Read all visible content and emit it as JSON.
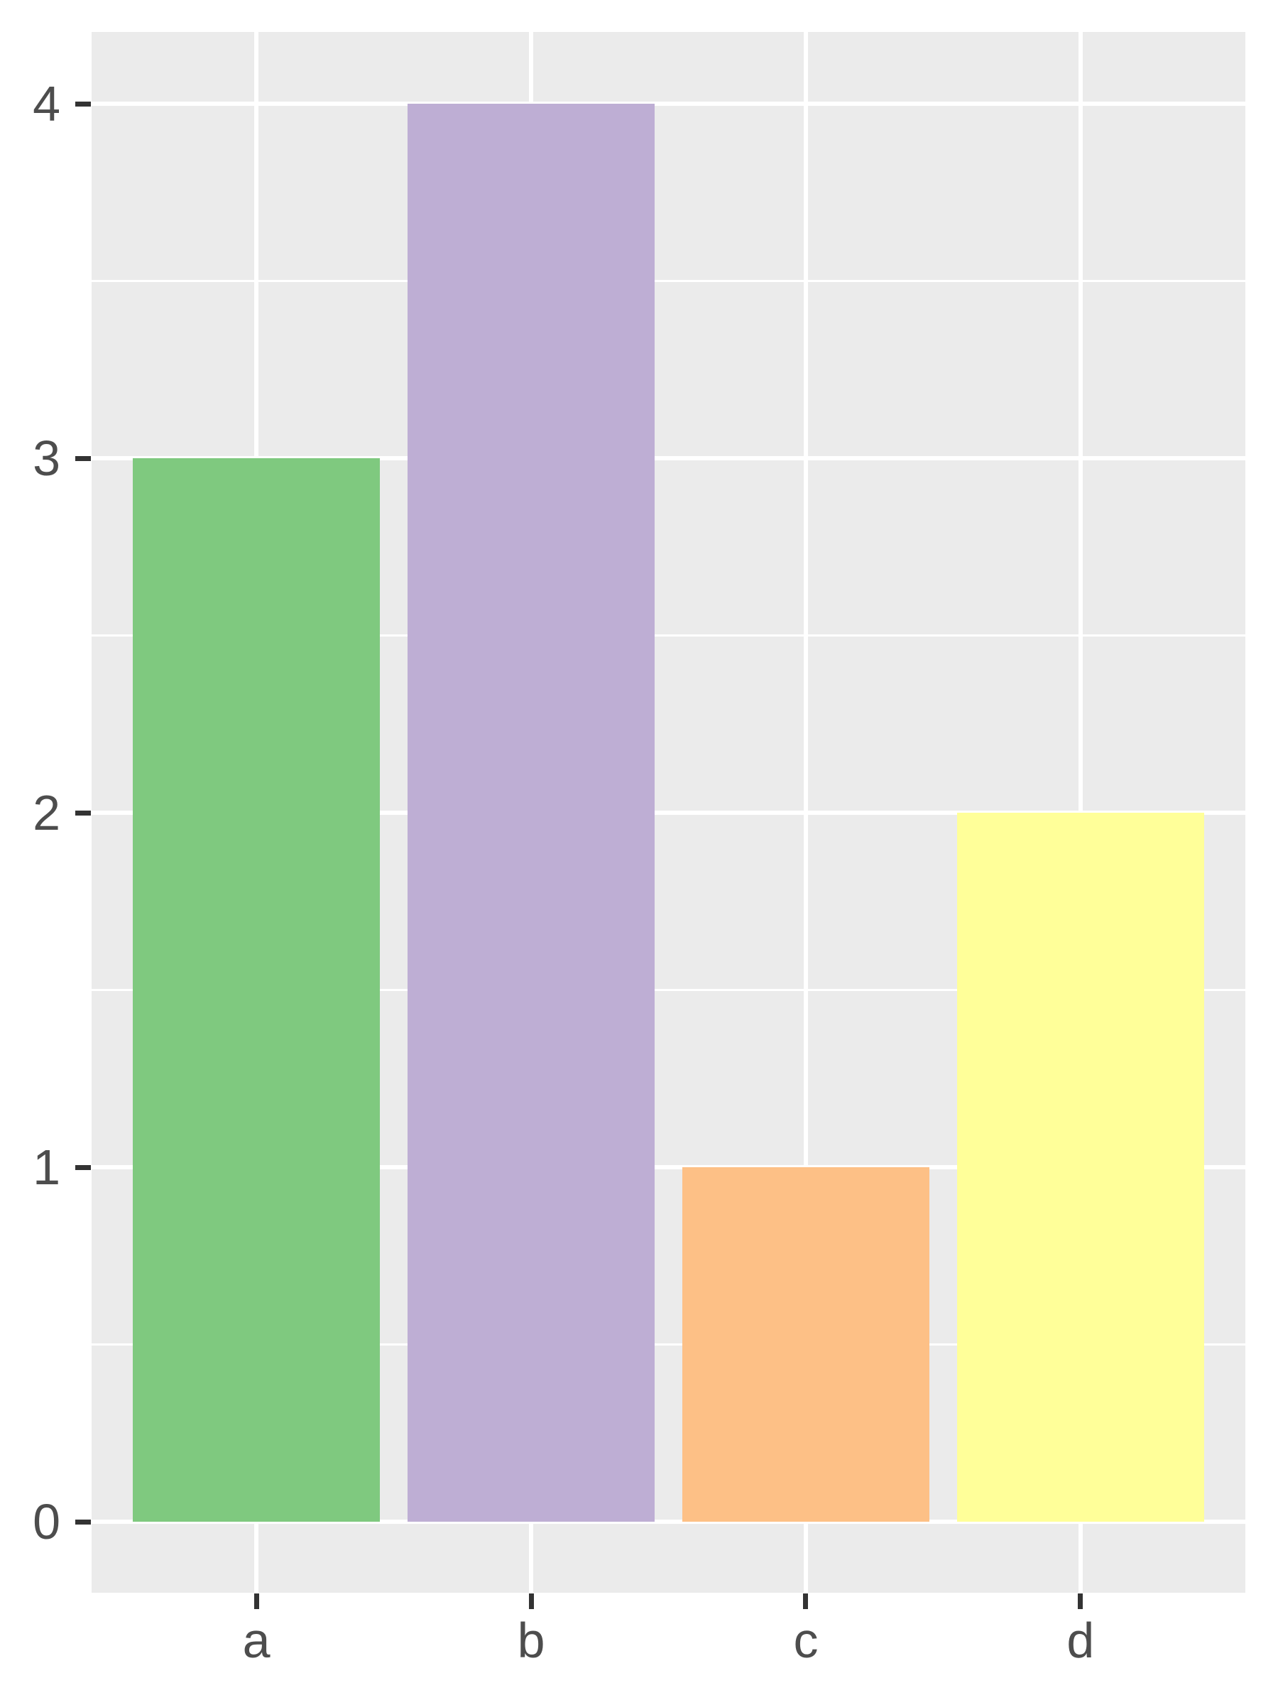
{
  "chart_data": {
    "type": "bar",
    "categories": [
      "a",
      "b",
      "c",
      "d"
    ],
    "values": [
      3,
      4,
      1,
      2
    ],
    "bar_colors": [
      "#7fc97f",
      "#beaed4",
      "#fdc086",
      "#ffff99"
    ],
    "title": "",
    "xlabel": "",
    "ylabel": "",
    "ytick_labels": [
      "0",
      "1",
      "2",
      "3",
      "4"
    ],
    "ytick_values": [
      0,
      1,
      2,
      3,
      4
    ],
    "minor_tick_values": [
      0.5,
      1.5,
      2.5,
      3.5
    ],
    "ylim": [
      0,
      4
    ],
    "bar_width_fraction": 0.9,
    "grid": "major and minor horizontal, major vertical at category centers",
    "legend": "none",
    "colors": {
      "panel_background": "#ebebeb",
      "gridline": "#ffffff",
      "tick_mark": "#333333",
      "axis_text": "#4d4d4d",
      "figure_background": "#ffffff"
    }
  }
}
